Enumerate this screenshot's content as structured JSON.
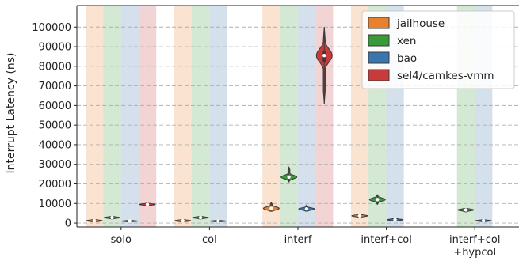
{
  "chart_data": {
    "type": "violin",
    "title": "",
    "xlabel": "",
    "ylabel": "Interrupt Latency (ns)",
    "ylim": [
      -2000,
      111000
    ],
    "yticks": [
      0,
      10000,
      20000,
      30000,
      40000,
      50000,
      60000,
      70000,
      80000,
      90000,
      100000
    ],
    "grid": "horizontal dashed",
    "legend_position": "top-right",
    "categories": [
      "solo",
      "col",
      "interf",
      "interf+col",
      "interf+col\n+hypcol"
    ],
    "series": [
      {
        "name": "jailhouse",
        "color": "#e8812d",
        "values": [
          {
            "category": "solo",
            "median": 1200,
            "q1": 900,
            "q3": 1500,
            "min": 700,
            "max": 1800
          },
          {
            "category": "col",
            "median": 1200,
            "q1": 900,
            "q3": 1500,
            "min": 700,
            "max": 1800
          },
          {
            "category": "interf",
            "median": 7500,
            "q1": 6800,
            "q3": 8200,
            "min": 6000,
            "max": 10500
          },
          {
            "category": "interf+col",
            "median": 3700,
            "q1": 3300,
            "q3": 4000,
            "min": 2800,
            "max": 4500
          },
          null
        ]
      },
      {
        "name": "xen",
        "color": "#3a9a3a",
        "values": [
          {
            "category": "solo",
            "median": 2800,
            "q1": 2500,
            "q3": 3100,
            "min": 2100,
            "max": 3400
          },
          {
            "category": "col",
            "median": 2800,
            "q1": 2500,
            "q3": 3100,
            "min": 2100,
            "max": 3400
          },
          {
            "category": "interf",
            "median": 23500,
            "q1": 22800,
            "q3": 24400,
            "min": 21000,
            "max": 28500
          },
          {
            "category": "interf+col",
            "median": 12000,
            "q1": 11300,
            "q3": 12700,
            "min": 9500,
            "max": 14500
          },
          {
            "category": "interf+col\n+hypcol",
            "median": 6700,
            "q1": 6300,
            "q3": 7100,
            "min": 5700,
            "max": 7500
          }
        ]
      },
      {
        "name": "bao",
        "color": "#3a75ad",
        "values": [
          {
            "category": "solo",
            "median": 1000,
            "q1": 800,
            "q3": 1200,
            "min": 600,
            "max": 1400
          },
          {
            "category": "col",
            "median": 1000,
            "q1": 800,
            "q3": 1200,
            "min": 600,
            "max": 1400
          },
          {
            "category": "interf",
            "median": 7200,
            "q1": 6700,
            "q3": 7700,
            "min": 6000,
            "max": 9200
          },
          {
            "category": "interf+col",
            "median": 1700,
            "q1": 1400,
            "q3": 2000,
            "min": 1100,
            "max": 2400
          },
          {
            "category": "interf+col\n+hypcol",
            "median": 1200,
            "q1": 900,
            "q3": 1400,
            "min": 700,
            "max": 1700
          }
        ]
      },
      {
        "name": "sel4/camkes-vmm",
        "color": "#c93a3a",
        "values": [
          {
            "category": "solo",
            "median": 9500,
            "q1": 9200,
            "q3": 9800,
            "min": 8800,
            "max": 10200
          },
          null,
          {
            "category": "interf",
            "median": 85500,
            "q1": 82000,
            "q3": 88000,
            "min": 61000,
            "max": 100000
          },
          null,
          null
        ]
      }
    ]
  }
}
